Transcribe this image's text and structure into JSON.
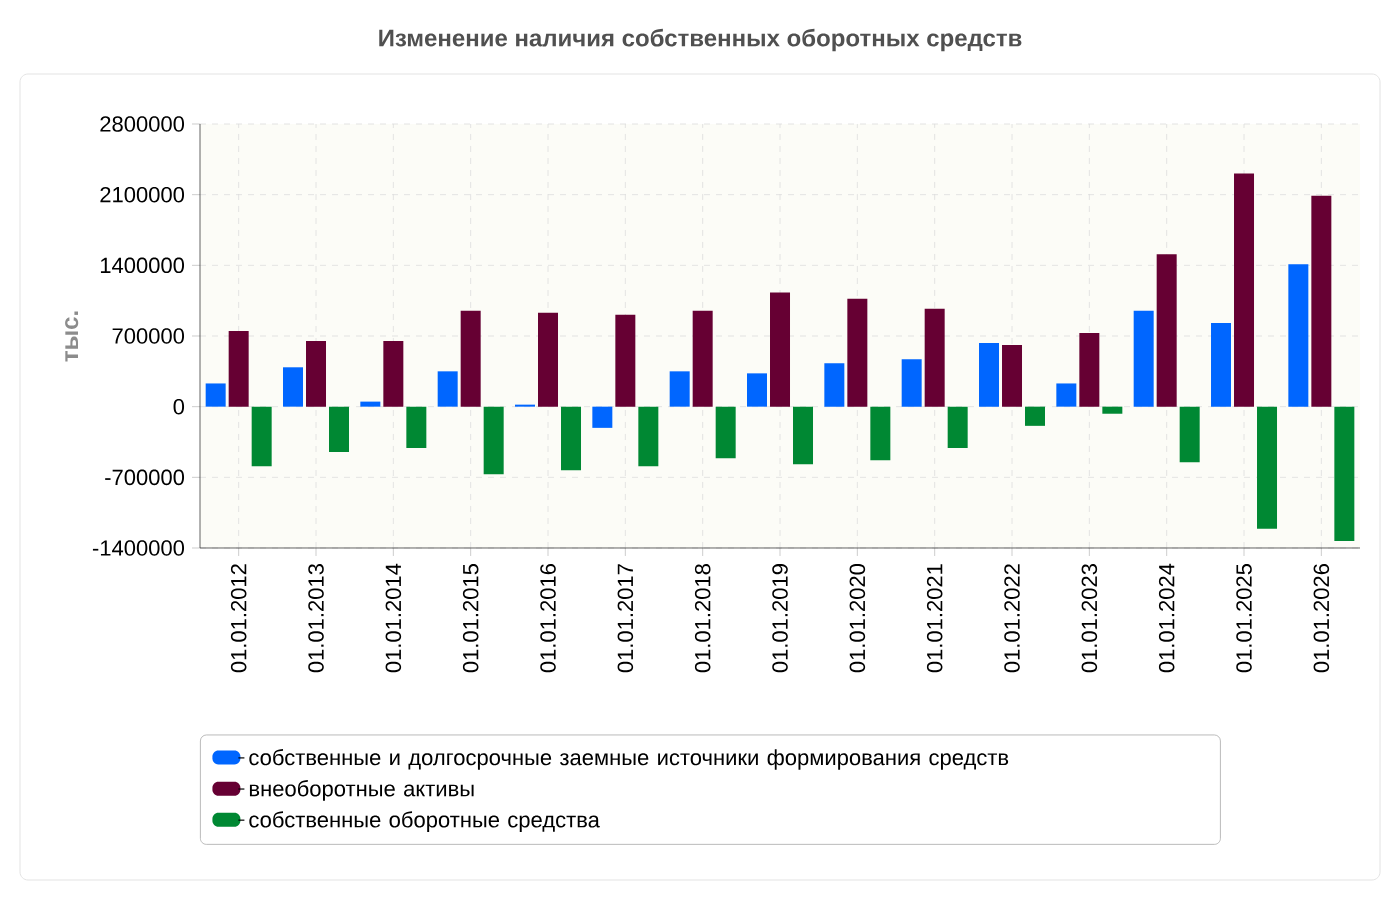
{
  "chart_data": {
    "type": "bar",
    "title": "Изменение наличия собственных оборотных средств",
    "ylabel": "тыс.",
    "categories": [
      "01.01.2012",
      "01.01.2013",
      "01.01.2014",
      "01.01.2015",
      "01.01.2016",
      "01.01.2017",
      "01.01.2018",
      "01.01.2019",
      "01.01.2020",
      "01.01.2021",
      "01.01.2022",
      "01.01.2023",
      "01.01.2024",
      "01.01.2025",
      "01.01.2026"
    ],
    "series": [
      {
        "name": "собственные и долгосрочные заемные источники формирования средств",
        "color": "#0066ff",
        "values": [
          230000,
          390000,
          50000,
          350000,
          20000,
          -210000,
          350000,
          330000,
          430000,
          470000,
          630000,
          230000,
          950000,
          830000,
          1410000
        ]
      },
      {
        "name": "внеоборотные активы",
        "color": "#660033",
        "values": [
          750000,
          650000,
          650000,
          950000,
          930000,
          910000,
          950000,
          1130000,
          1070000,
          970000,
          610000,
          730000,
          1510000,
          2310000,
          2090000
        ]
      },
      {
        "name": "собственные оборотные средства",
        "color": "#008833",
        "values": [
          -590000,
          -450000,
          -410000,
          -670000,
          -630000,
          -590000,
          -510000,
          -570000,
          -530000,
          -410000,
          -190000,
          -70000,
          -550000,
          -1210000,
          -1330000
        ]
      }
    ],
    "ylim": [
      -1400000,
      2800000
    ],
    "yticks": [
      -1400000,
      -700000,
      0,
      700000,
      1400000,
      2100000,
      2800000
    ],
    "grid": true,
    "legend": "bottom"
  }
}
